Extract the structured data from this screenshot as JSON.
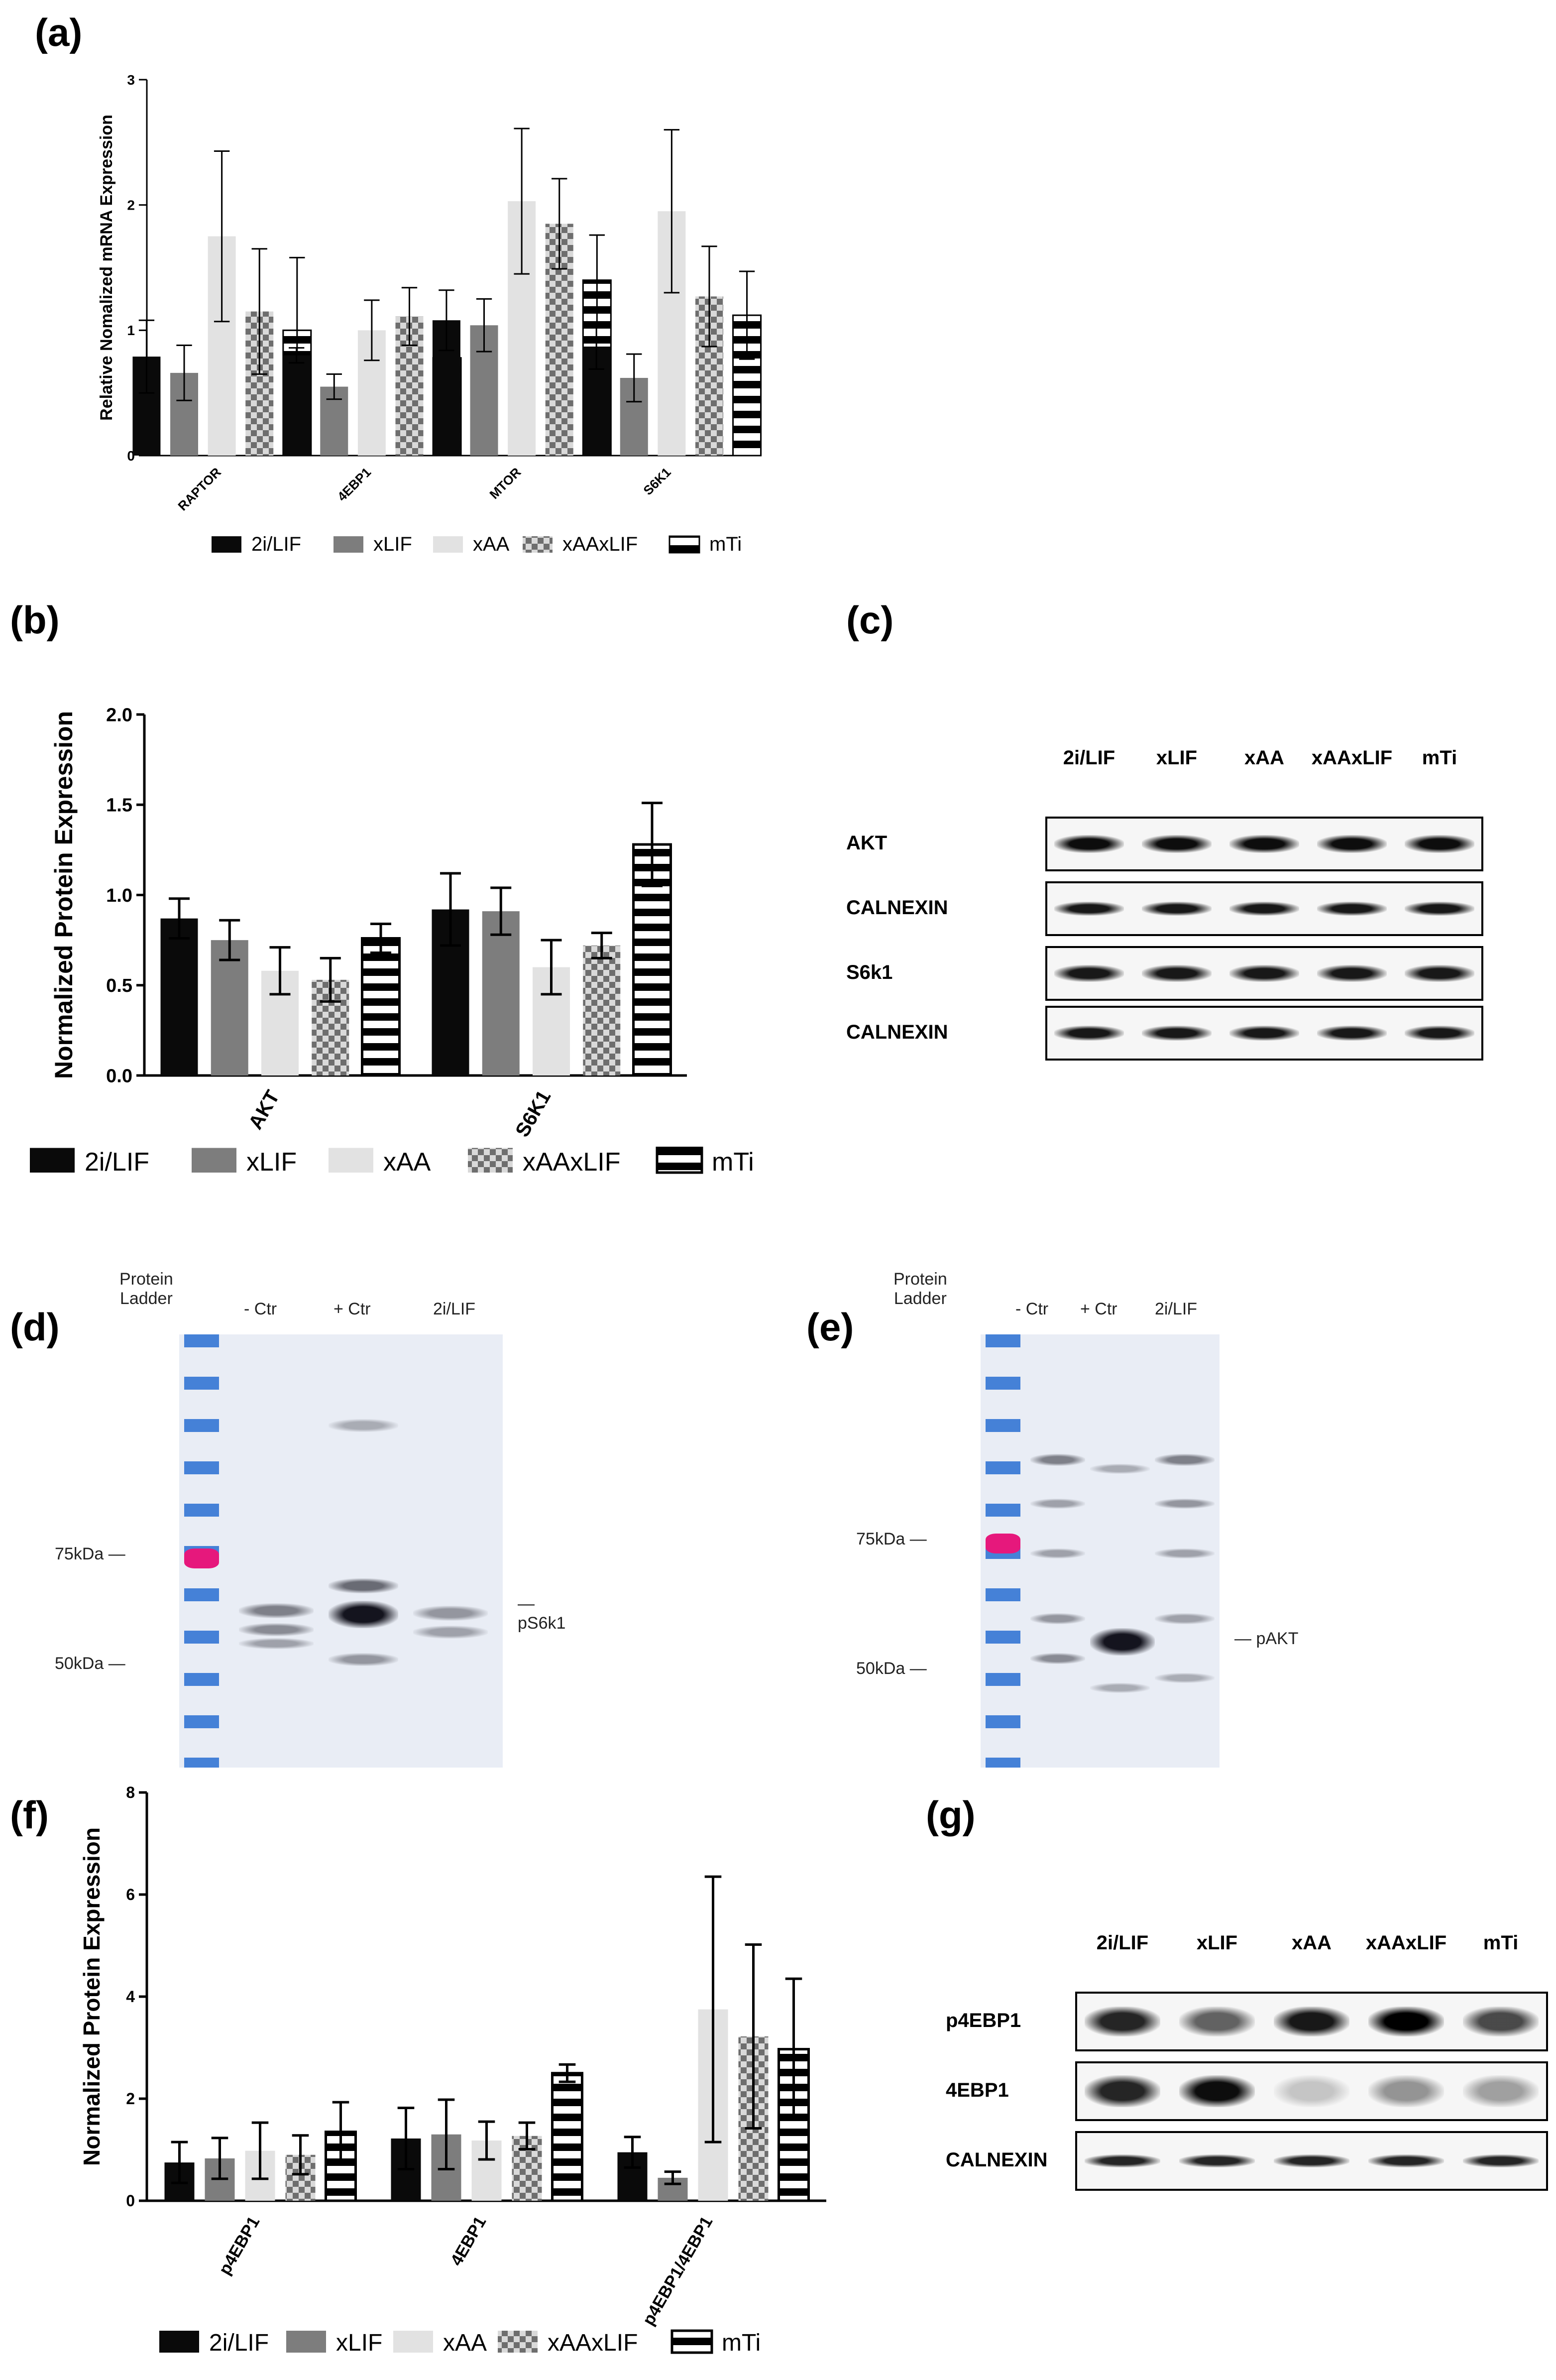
{
  "panel_labels": {
    "a": "(a)",
    "b": "(b)",
    "c": "(c)",
    "d": "(d)",
    "e": "(e)",
    "f": "(f)",
    "g": "(g)"
  },
  "colors": {
    "2i/LIF": "#0a0a0a",
    "xLIF": "#7d7d7d",
    "xAA": "#e2e2e2",
    "xAAxLIF": "checkered",
    "mTi": "horizontal-stripes"
  },
  "legend": [
    "2i/LIF",
    "xLIF",
    "xAA",
    "xAAxLIF",
    "mTi"
  ],
  "chart_data": [
    {
      "id": "a",
      "type": "bar",
      "ylabel": "Relative Nomalized mRNA Expression",
      "ylim": [
        0,
        3
      ],
      "yticks": [
        "0",
        "1",
        "2",
        "3"
      ],
      "categories": [
        "RAPTOR",
        "4EBP1",
        "MTOR",
        "S6K1"
      ],
      "series": [
        {
          "name": "2i/LIF",
          "values": [
            0.79,
            0.8,
            1.08,
            0.87
          ],
          "errors": [
            0.29,
            0.06,
            0.24,
            0.18
          ]
        },
        {
          "name": "xLIF",
          "values": [
            0.66,
            0.55,
            1.04,
            0.62
          ],
          "errors": [
            0.22,
            0.1,
            0.21,
            0.19
          ]
        },
        {
          "name": "xAA",
          "values": [
            1.75,
            1.0,
            2.03,
            1.95
          ],
          "errors": [
            0.68,
            0.24,
            0.58,
            0.65
          ]
        },
        {
          "name": "xAAxLIF",
          "values": [
            1.15,
            1.11,
            1.85,
            1.27
          ],
          "errors": [
            0.5,
            0.23,
            0.36,
            0.4
          ]
        },
        {
          "name": "mTi",
          "values": [
            1.0,
            0.78,
            1.4,
            1.12
          ],
          "errors": [
            0.58,
            0.11,
            0.36,
            0.35
          ]
        }
      ]
    },
    {
      "id": "b",
      "type": "bar",
      "ylabel": "Normalized Protein Expression",
      "ylim": [
        0,
        2
      ],
      "yticks": [
        "0.0",
        "0.5",
        "1.0",
        "1.5",
        "2.0"
      ],
      "categories": [
        "AKT",
        "S6K1"
      ],
      "series": [
        {
          "name": "2i/LIF",
          "values": [
            0.87,
            0.92
          ],
          "errors": [
            0.11,
            0.2
          ]
        },
        {
          "name": "xLIF",
          "values": [
            0.75,
            0.91
          ],
          "errors": [
            0.11,
            0.13
          ]
        },
        {
          "name": "xAA",
          "values": [
            0.58,
            0.6
          ],
          "errors": [
            0.13,
            0.15
          ]
        },
        {
          "name": "xAAxLIF",
          "values": [
            0.53,
            0.72
          ],
          "errors": [
            0.12,
            0.07
          ]
        },
        {
          "name": "mTi",
          "values": [
            0.76,
            1.28
          ],
          "errors": [
            0.08,
            0.23
          ]
        }
      ]
    },
    {
      "id": "f",
      "type": "bar",
      "ylabel": "Normalized Protein Expression",
      "ylim": [
        0,
        8
      ],
      "yticks": [
        "0",
        "2",
        "4",
        "6",
        "8"
      ],
      "categories": [
        "p4EBP1",
        "4EBP1",
        "p4EBP1/4EBP1"
      ],
      "series": [
        {
          "name": "2i/LIF",
          "values": [
            0.75,
            1.22,
            0.95
          ],
          "errors": [
            0.4,
            0.6,
            0.3
          ]
        },
        {
          "name": "xLIF",
          "values": [
            0.83,
            1.3,
            0.45
          ],
          "errors": [
            0.4,
            0.68,
            0.12
          ]
        },
        {
          "name": "xAA",
          "values": [
            0.98,
            1.18,
            3.75
          ],
          "errors": [
            0.55,
            0.37,
            2.6
          ]
        },
        {
          "name": "xAAxLIF",
          "values": [
            0.9,
            1.27,
            3.22
          ],
          "errors": [
            0.38,
            0.26,
            1.8
          ]
        },
        {
          "name": "mTi",
          "values": [
            1.35,
            2.5,
            2.97
          ],
          "errors": [
            0.58,
            0.17,
            1.38
          ]
        }
      ]
    }
  ],
  "blot_c": {
    "columns": [
      "2i/LIF",
      "xLIF",
      "xAA",
      "xAAxLIF",
      "mTi"
    ],
    "rows": [
      "AKT",
      "CALNEXIN",
      "S6k1",
      "CALNEXIN"
    ]
  },
  "blot_g": {
    "columns": [
      "2i/LIF",
      "xLIF",
      "xAA",
      "xAAxLIF",
      "mTi"
    ],
    "rows": [
      "p4EBP1",
      "4EBP1",
      "CALNEXIN"
    ]
  },
  "gel_d": {
    "lanes": [
      "Protein\nLadder",
      "- Ctr",
      "+ Ctr",
      "2i/LIF"
    ],
    "markers": [
      "75kDa",
      "50kDa"
    ],
    "band_label": "pS6k1"
  },
  "gel_e": {
    "lanes": [
      "Protein\nLadder",
      "- Ctr",
      "+ Ctr",
      "2i/LIF"
    ],
    "markers": [
      "75kDa",
      "50kDa"
    ],
    "band_label": "pAKT"
  }
}
